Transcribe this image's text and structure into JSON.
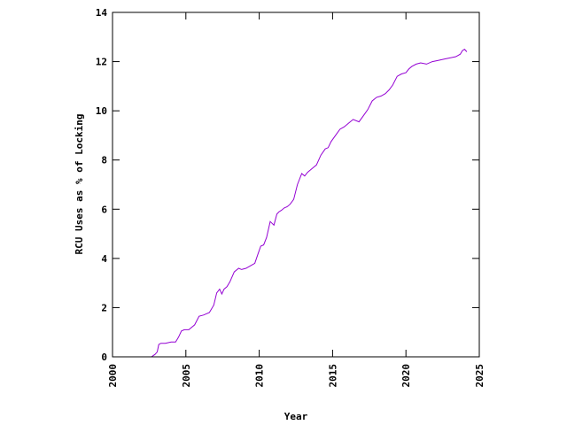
{
  "chart_data": {
    "type": "line",
    "title": "",
    "xlabel": "Year",
    "ylabel": "RCU Uses as % of Locking",
    "xlim": [
      2000,
      2025
    ],
    "ylim": [
      0,
      14
    ],
    "xticks": [
      2000,
      2005,
      2010,
      2015,
      2020,
      2025
    ],
    "yticks": [
      0,
      2,
      4,
      6,
      8,
      10,
      12,
      14
    ],
    "xtick_labels": [
      "2000",
      "2005",
      "2010",
      "2015",
      "2020",
      "2025"
    ],
    "ytick_labels": [
      "0",
      "2",
      "4",
      "6",
      "8",
      "10",
      "12",
      "14"
    ],
    "grid": false,
    "legend": "none",
    "series": [
      {
        "color": "#9400d3",
        "x": [
          2002.65,
          2002.9,
          2003.05,
          2003.15,
          2003.3,
          2003.6,
          2004.0,
          2004.3,
          2004.5,
          2004.7,
          2004.9,
          2005.2,
          2005.6,
          2005.9,
          2006.2,
          2006.6,
          2006.9,
          2007.1,
          2007.3,
          2007.45,
          2007.6,
          2007.8,
          2008.0,
          2008.3,
          2008.6,
          2008.8,
          2009.1,
          2009.4,
          2009.7,
          2009.9,
          2010.1,
          2010.3,
          2010.5,
          2010.75,
          2011.0,
          2011.2,
          2011.35,
          2011.5,
          2011.7,
          2011.9,
          2012.1,
          2012.35,
          2012.6,
          2012.9,
          2013.1,
          2013.3,
          2013.5,
          2013.7,
          2013.9,
          2014.2,
          2014.5,
          2014.7,
          2014.9,
          2015.2,
          2015.5,
          2015.8,
          2016.1,
          2016.4,
          2016.8,
          2017.1,
          2017.4,
          2017.7,
          2018.0,
          2018.3,
          2018.6,
          2018.85,
          2019.1,
          2019.4,
          2019.7,
          2020.0,
          2020.2,
          2020.4,
          2020.7,
          2021.0,
          2021.4,
          2021.8,
          2022.2,
          2022.6,
          2023.0,
          2023.4,
          2023.7,
          2023.85,
          2024.0,
          2024.15
        ],
        "y": [
          0.0,
          0.1,
          0.2,
          0.5,
          0.55,
          0.55,
          0.6,
          0.6,
          0.8,
          1.05,
          1.1,
          1.1,
          1.3,
          1.65,
          1.7,
          1.8,
          2.1,
          2.6,
          2.75,
          2.55,
          2.75,
          2.85,
          3.05,
          3.45,
          3.6,
          3.55,
          3.6,
          3.7,
          3.8,
          4.15,
          4.5,
          4.55,
          4.85,
          5.5,
          5.35,
          5.8,
          5.9,
          5.95,
          6.05,
          6.1,
          6.2,
          6.4,
          7.0,
          7.45,
          7.35,
          7.5,
          7.6,
          7.7,
          7.8,
          8.2,
          8.45,
          8.5,
          8.75,
          9.0,
          9.25,
          9.35,
          9.5,
          9.65,
          9.55,
          9.8,
          10.05,
          10.4,
          10.55,
          10.6,
          10.7,
          10.85,
          11.05,
          11.4,
          11.5,
          11.55,
          11.7,
          11.8,
          11.9,
          11.95,
          11.9,
          12.0,
          12.05,
          12.1,
          12.15,
          12.2,
          12.3,
          12.45,
          12.5,
          12.4
        ]
      }
    ]
  }
}
